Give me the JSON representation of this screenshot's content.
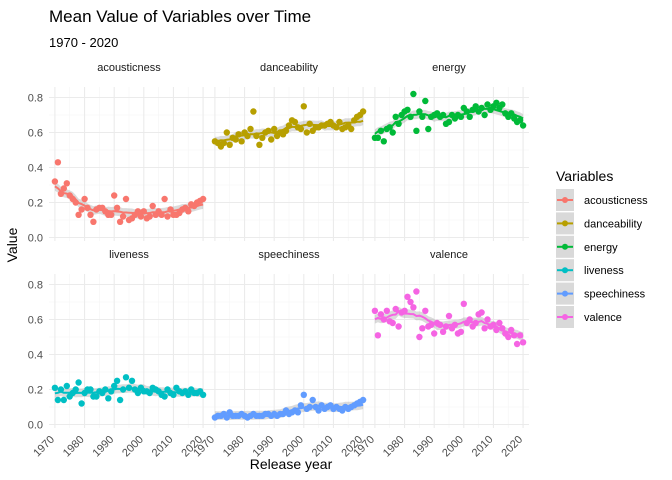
{
  "chart_data": {
    "type": "scatter",
    "title": "Mean Value of Variables over Time",
    "subtitle": "1970 - 2020",
    "xlabel": "Release year",
    "ylabel": "Value",
    "xlim": [
      1970,
      2020
    ],
    "ylim": [
      0,
      0.8
    ],
    "x_ticks": [
      "1970",
      "1980",
      "1990",
      "2000",
      "2010",
      "2020"
    ],
    "y_ticks": [
      "0.0",
      "0.2",
      "0.4",
      "0.6",
      "0.8"
    ],
    "legend_title": "Variables",
    "legend_position": "right",
    "grid": true,
    "smoother": true,
    "series": [
      {
        "name": "acousticness",
        "color": "#F8766D",
        "values": [
          0.32,
          0.43,
          0.25,
          0.28,
          0.31,
          0.24,
          0.22,
          0.2,
          0.13,
          0.16,
          0.22,
          0.17,
          0.13,
          0.09,
          0.16,
          0.17,
          0.17,
          0.15,
          0.13,
          0.13,
          0.24,
          0.17,
          0.09,
          0.12,
          0.22,
          0.1,
          0.11,
          0.13,
          0.15,
          0.12,
          0.15,
          0.11,
          0.12,
          0.18,
          0.13,
          0.15,
          0.13,
          0.22,
          0.12,
          0.16,
          0.13,
          0.13,
          0.14,
          0.16,
          0.17,
          0.15,
          0.19,
          0.18,
          0.2,
          0.21,
          0.22
        ]
      },
      {
        "name": "danceability",
        "color": "#B79F00",
        "values": [
          0.55,
          0.54,
          0.52,
          0.54,
          0.6,
          0.53,
          0.57,
          0.56,
          0.59,
          0.55,
          0.6,
          0.58,
          0.62,
          0.72,
          0.58,
          0.53,
          0.57,
          0.6,
          0.61,
          0.56,
          0.62,
          0.58,
          0.6,
          0.59,
          0.61,
          0.64,
          0.67,
          0.66,
          0.63,
          0.62,
          0.75,
          0.6,
          0.65,
          0.61,
          0.63,
          0.63,
          0.64,
          0.64,
          0.65,
          0.66,
          0.64,
          0.63,
          0.66,
          0.62,
          0.63,
          0.64,
          0.62,
          0.67,
          0.69,
          0.7,
          0.72
        ]
      },
      {
        "name": "energy",
        "color": "#00BA38",
        "values": [
          0.57,
          0.57,
          0.61,
          0.55,
          0.62,
          0.63,
          0.6,
          0.69,
          0.65,
          0.7,
          0.72,
          0.73,
          0.69,
          0.82,
          0.61,
          0.72,
          0.69,
          0.78,
          0.62,
          0.69,
          0.7,
          0.71,
          0.69,
          0.7,
          0.65,
          0.66,
          0.7,
          0.68,
          0.7,
          0.69,
          0.74,
          0.72,
          0.69,
          0.73,
          0.75,
          0.72,
          0.74,
          0.7,
          0.76,
          0.73,
          0.75,
          0.77,
          0.74,
          0.76,
          0.71,
          0.69,
          0.71,
          0.68,
          0.66,
          0.67,
          0.64
        ]
      },
      {
        "name": "liveness",
        "color": "#00BFC4",
        "values": [
          0.21,
          0.14,
          0.2,
          0.14,
          0.22,
          0.16,
          0.18,
          0.2,
          0.24,
          0.12,
          0.18,
          0.2,
          0.2,
          0.16,
          0.16,
          0.19,
          0.18,
          0.2,
          0.15,
          0.19,
          0.22,
          0.25,
          0.14,
          0.2,
          0.27,
          0.21,
          0.25,
          0.2,
          0.18,
          0.21,
          0.19,
          0.19,
          0.18,
          0.21,
          0.2,
          0.19,
          0.17,
          0.16,
          0.2,
          0.18,
          0.17,
          0.21,
          0.19,
          0.18,
          0.19,
          0.17,
          0.2,
          0.18,
          0.18,
          0.19,
          0.17
        ]
      },
      {
        "name": "speechiness",
        "color": "#619CFF",
        "values": [
          0.04,
          0.05,
          0.05,
          0.06,
          0.04,
          0.07,
          0.05,
          0.05,
          0.05,
          0.06,
          0.05,
          0.04,
          0.05,
          0.06,
          0.05,
          0.05,
          0.05,
          0.06,
          0.06,
          0.05,
          0.06,
          0.05,
          0.06,
          0.06,
          0.08,
          0.06,
          0.07,
          0.08,
          0.07,
          0.11,
          0.17,
          0.09,
          0.1,
          0.14,
          0.1,
          0.08,
          0.11,
          0.09,
          0.1,
          0.11,
          0.09,
          0.1,
          0.09,
          0.08,
          0.1,
          0.09,
          0.1,
          0.11,
          0.12,
          0.13,
          0.14
        ]
      },
      {
        "name": "valence",
        "color": "#F564E3",
        "values": [
          0.65,
          0.51,
          0.63,
          0.6,
          0.65,
          0.59,
          0.58,
          0.66,
          0.56,
          0.64,
          0.65,
          0.73,
          0.7,
          0.67,
          0.76,
          0.5,
          0.55,
          0.65,
          0.56,
          0.57,
          0.52,
          0.58,
          0.57,
          0.53,
          0.56,
          0.62,
          0.55,
          0.57,
          0.52,
          0.53,
          0.69,
          0.58,
          0.6,
          0.56,
          0.58,
          0.63,
          0.64,
          0.55,
          0.6,
          0.56,
          0.57,
          0.54,
          0.58,
          0.55,
          0.52,
          0.5,
          0.54,
          0.51,
          0.46,
          0.51,
          0.47
        ]
      }
    ]
  }
}
